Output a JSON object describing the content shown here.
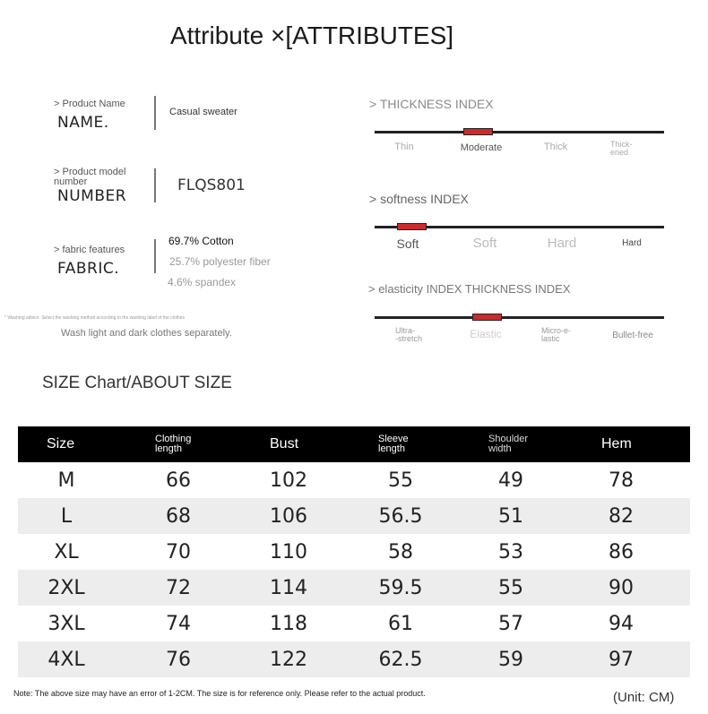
{
  "title": "Attribute ×[ATTRIBUTES]",
  "attributes": {
    "name": {
      "label": "> Product Name",
      "key": "NAME.",
      "value": "Casual sweater"
    },
    "number": {
      "label_line1": "> Product model",
      "label_line2": "number",
      "key": "NUMBER",
      "value": "FLQS801"
    },
    "fabric": {
      "label": "> fabric features",
      "key": "FABRIC.",
      "values": [
        "69.7% Cotton",
        "25.7% polyester fiber",
        "4.6% spandex"
      ]
    }
  },
  "washing": {
    "advice": "* Washing advice: Select the washing method according to the washing label of the clothes",
    "text": "Wash light and dark clothes separately."
  },
  "indexes": {
    "thickness": {
      "title": "> THICKNESS INDEX",
      "options": [
        {
          "line1": "Thin",
          "line2": ""
        },
        {
          "line1": "Moderate",
          "line2": ""
        },
        {
          "line1": "Thick",
          "line2": ""
        },
        {
          "line1": "Thick-",
          "line2": "ened"
        }
      ],
      "selected": 1
    },
    "softness": {
      "title": "> softness INDEX",
      "options": [
        "Soft",
        "Soft",
        "Hard",
        "Hard"
      ],
      "selected": 0
    },
    "elasticity": {
      "title": "> elasticity INDEX THICKNESS INDEX",
      "options": [
        {
          "line1": "Ultra-",
          "line2": "-stretch"
        },
        {
          "line1": "Elastic",
          "line2": ""
        },
        {
          "line1": "Micro-e-",
          "line2": "lastic"
        },
        {
          "line1": "Bullet-free",
          "line2": ""
        }
      ],
      "selected": 1
    }
  },
  "size_section": {
    "title": "SIZE Chart/ABOUT SIZE",
    "headers": [
      {
        "line1": "Size",
        "line2": ""
      },
      {
        "line1": "Clothing",
        "line2": "length"
      },
      {
        "line1": "Bust",
        "line2": ""
      },
      {
        "line1": "Sleeve",
        "line2": "length"
      },
      {
        "line1": "Shoulder",
        "line2": "width"
      },
      {
        "line1": "Hem",
        "line2": ""
      }
    ],
    "rows": [
      [
        "M",
        "66",
        "102",
        "55",
        "49",
        "78"
      ],
      [
        "L",
        "68",
        "106",
        "56.5",
        "51",
        "82"
      ],
      [
        "XL",
        "70",
        "110",
        "58",
        "53",
        "86"
      ],
      [
        "2XL",
        "72",
        "114",
        "59.5",
        "55",
        "90"
      ],
      [
        "3XL",
        "74",
        "118",
        "61",
        "57",
        "94"
      ],
      [
        "4XL",
        "76",
        "122",
        "62.5",
        "59",
        "97"
      ]
    ],
    "note": "Note: The above size may have an error of 1-2CM. The size is for reference only. Please refer to the actual product.",
    "unit": "(Unit: CM)"
  },
  "colors": {
    "marker": "#cc2b2b",
    "header_bg": "#000000",
    "row_shade": "#ededed"
  }
}
